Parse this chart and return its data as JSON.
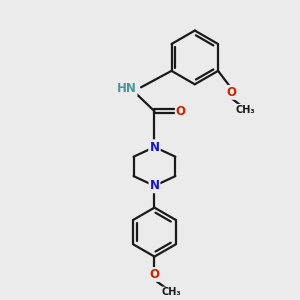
{
  "background_color": "#ebebeb",
  "bond_color": "#1a1a1a",
  "N_color": "#1515cc",
  "O_color": "#cc2200",
  "H_color": "#4a9898",
  "line_width": 1.6,
  "font_size_atom": 8.5,
  "figsize": [
    3.0,
    3.0
  ],
  "dpi": 100,
  "xlim": [
    0,
    10
  ],
  "ylim": [
    0,
    10
  ]
}
